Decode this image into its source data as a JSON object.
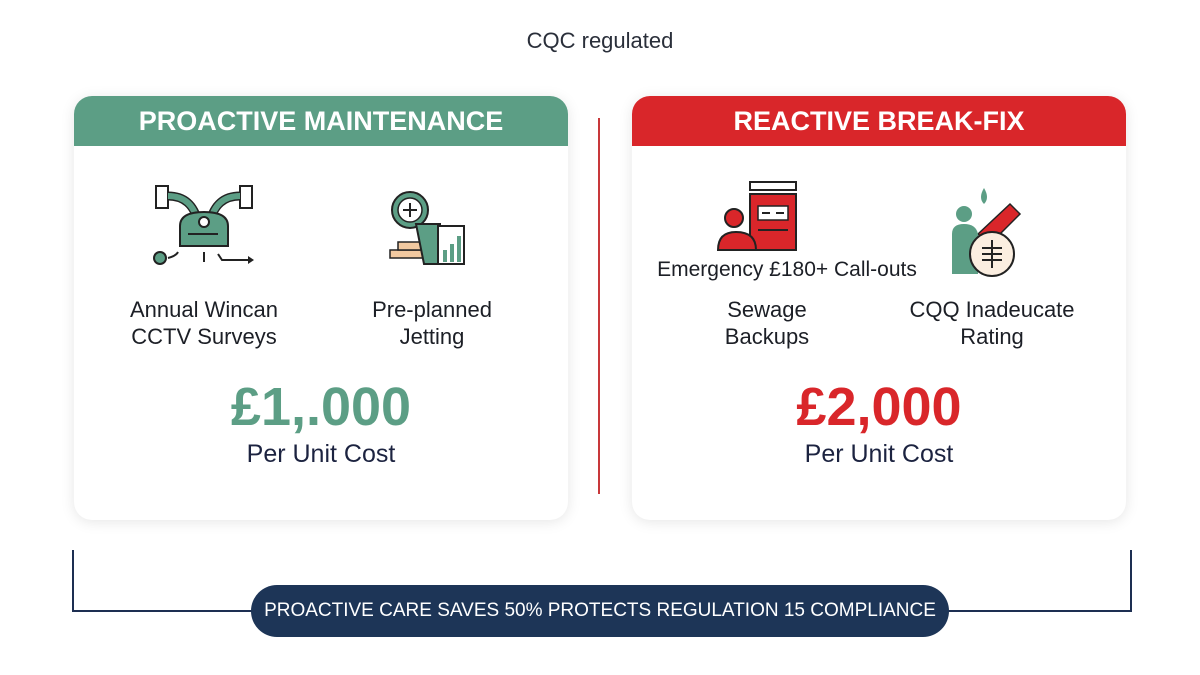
{
  "header": {
    "subtitle": "CQC regulated"
  },
  "proactive": {
    "title": "PROACTIVE MAINTENANCE",
    "color": "#5c9e85",
    "items": [
      {
        "icon": "cctv-robot-icon",
        "line1": "Annual Wincan",
        "line2": "CCTV Surveys"
      },
      {
        "icon": "planning-chart-icon",
        "line1": "Pre-planned",
        "line2": "Jetting"
      }
    ],
    "price": "£1,.000",
    "price_label": "Per Unit Cost"
  },
  "reactive": {
    "title": "REACTIVE BREAK-FIX",
    "color": "#d9262a",
    "callout": "Emergency £180+ Call-outs",
    "items": [
      {
        "icon": "emergency-person-icon",
        "line1": "Sewage",
        "line2": "Backups"
      },
      {
        "icon": "rating-coin-icon",
        "line1": "CQQ Inadeucate",
        "line2": "Rating"
      }
    ],
    "price": "£2,000",
    "price_label": "Per Unit Cost"
  },
  "footer": {
    "banner": "PROACTIVE CARE SAVES 50% PROTECTS REGULATION 15 COMPLIANCE",
    "color": "#1d3557"
  }
}
